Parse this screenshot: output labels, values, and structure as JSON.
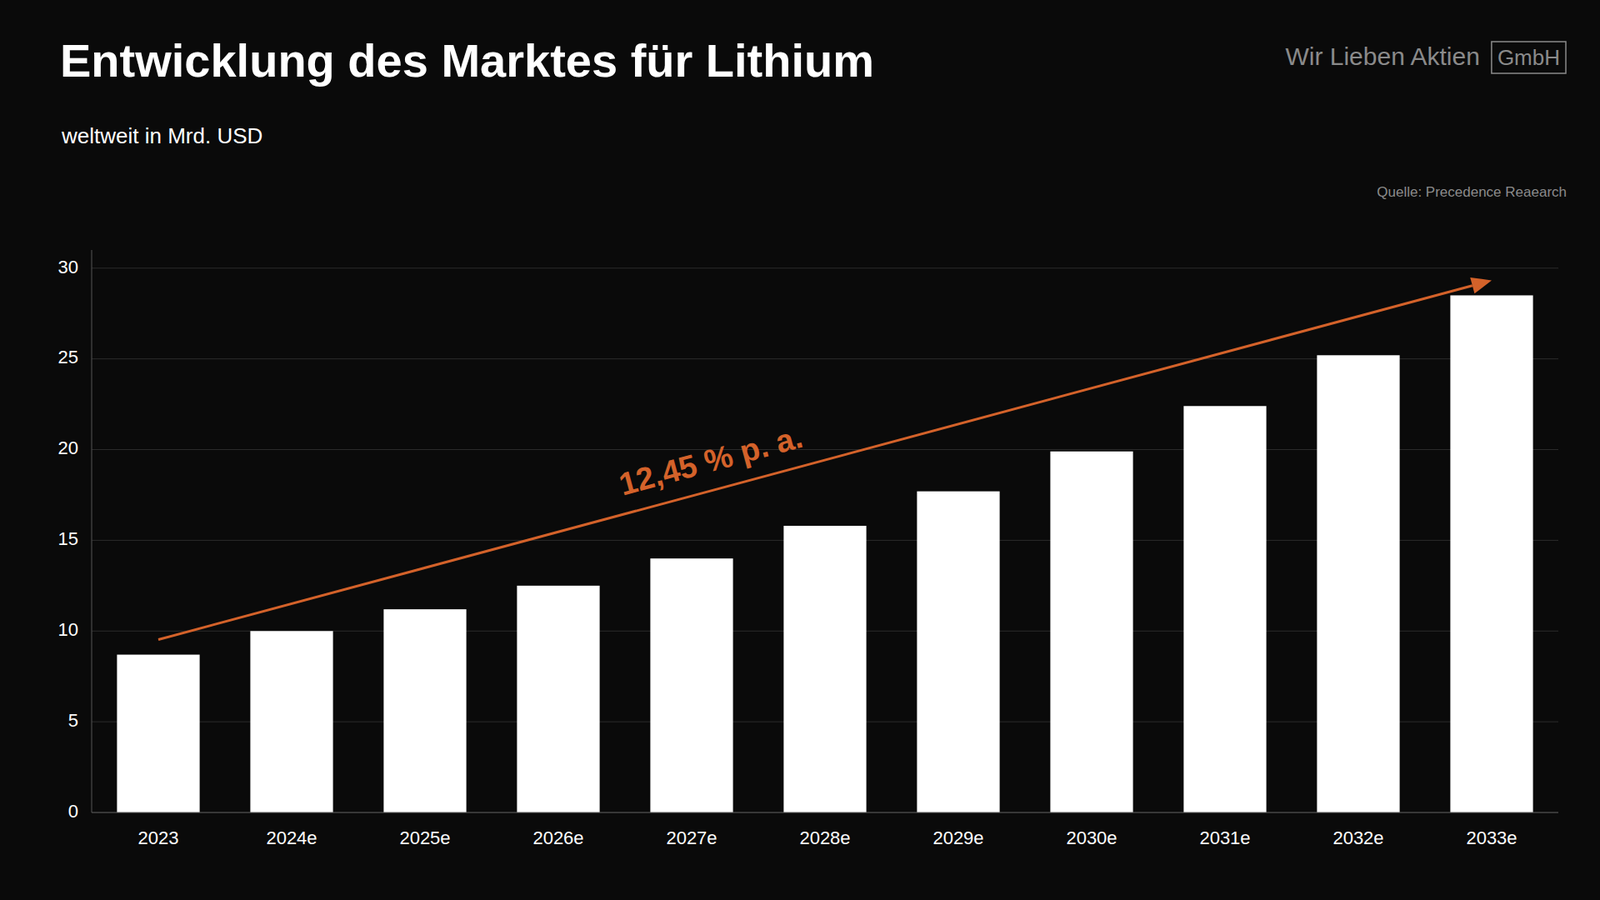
{
  "chart_data": {
    "type": "bar",
    "title": "Entwicklung des Marktes für Lithium",
    "subtitle": "weltweit in Mrd. USD",
    "annotation": "12,45 % p. a.",
    "source": "Quelle: Precedence Reaearch",
    "brand": "Wir Lieben Aktien",
    "brand_box": "GmbH",
    "categories": [
      "2023",
      "2024e",
      "2025e",
      "2026e",
      "2027e",
      "2028e",
      "2029e",
      "2030e",
      "2031e",
      "2032e",
      "2033e"
    ],
    "values": [
      8.7,
      10.0,
      11.2,
      12.5,
      14.0,
      15.8,
      17.7,
      19.9,
      22.4,
      25.2,
      28.5
    ],
    "color": "#ffffff",
    "ylim": [
      0,
      31
    ],
    "yticks": [
      0,
      5,
      10,
      15,
      20,
      25,
      30
    ],
    "grid": true
  }
}
